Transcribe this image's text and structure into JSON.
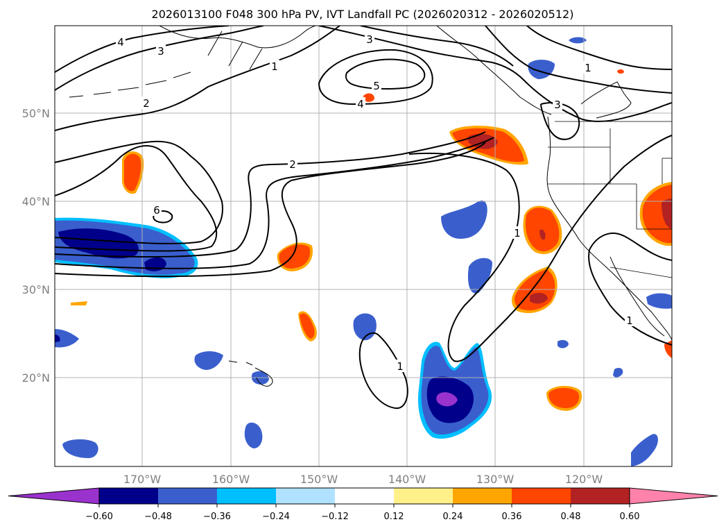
{
  "title": "2026013100 F048 300 hPa PV, IVT Landfall PC (2026020312 - 2026020512)",
  "lat_labels": [
    "50°N",
    "40°N",
    "30°N",
    "20°N"
  ],
  "lon_labels": [
    "170°W",
    "160°W",
    "150°W",
    "140°W",
    "130°W",
    "120°W"
  ],
  "contour_labels": [
    "4",
    "3",
    "1",
    "3",
    "5",
    "4",
    "2",
    "2",
    "1",
    "3",
    "1",
    "6",
    "1",
    "1"
  ],
  "colorbar": {
    "ticks": [
      "−0.60",
      "−0.48",
      "−0.36",
      "−0.24",
      "−0.12",
      "0.12",
      "0.24",
      "0.36",
      "0.48",
      "0.60"
    ],
    "colors": [
      "#9a32cd",
      "#00008b",
      "#3a5fcd",
      "#00bfff",
      "#b0e2ff",
      "#ffffff",
      "#fff08a",
      "#ffa500",
      "#ff4500",
      "#b22222",
      "#ff82ab"
    ]
  }
}
